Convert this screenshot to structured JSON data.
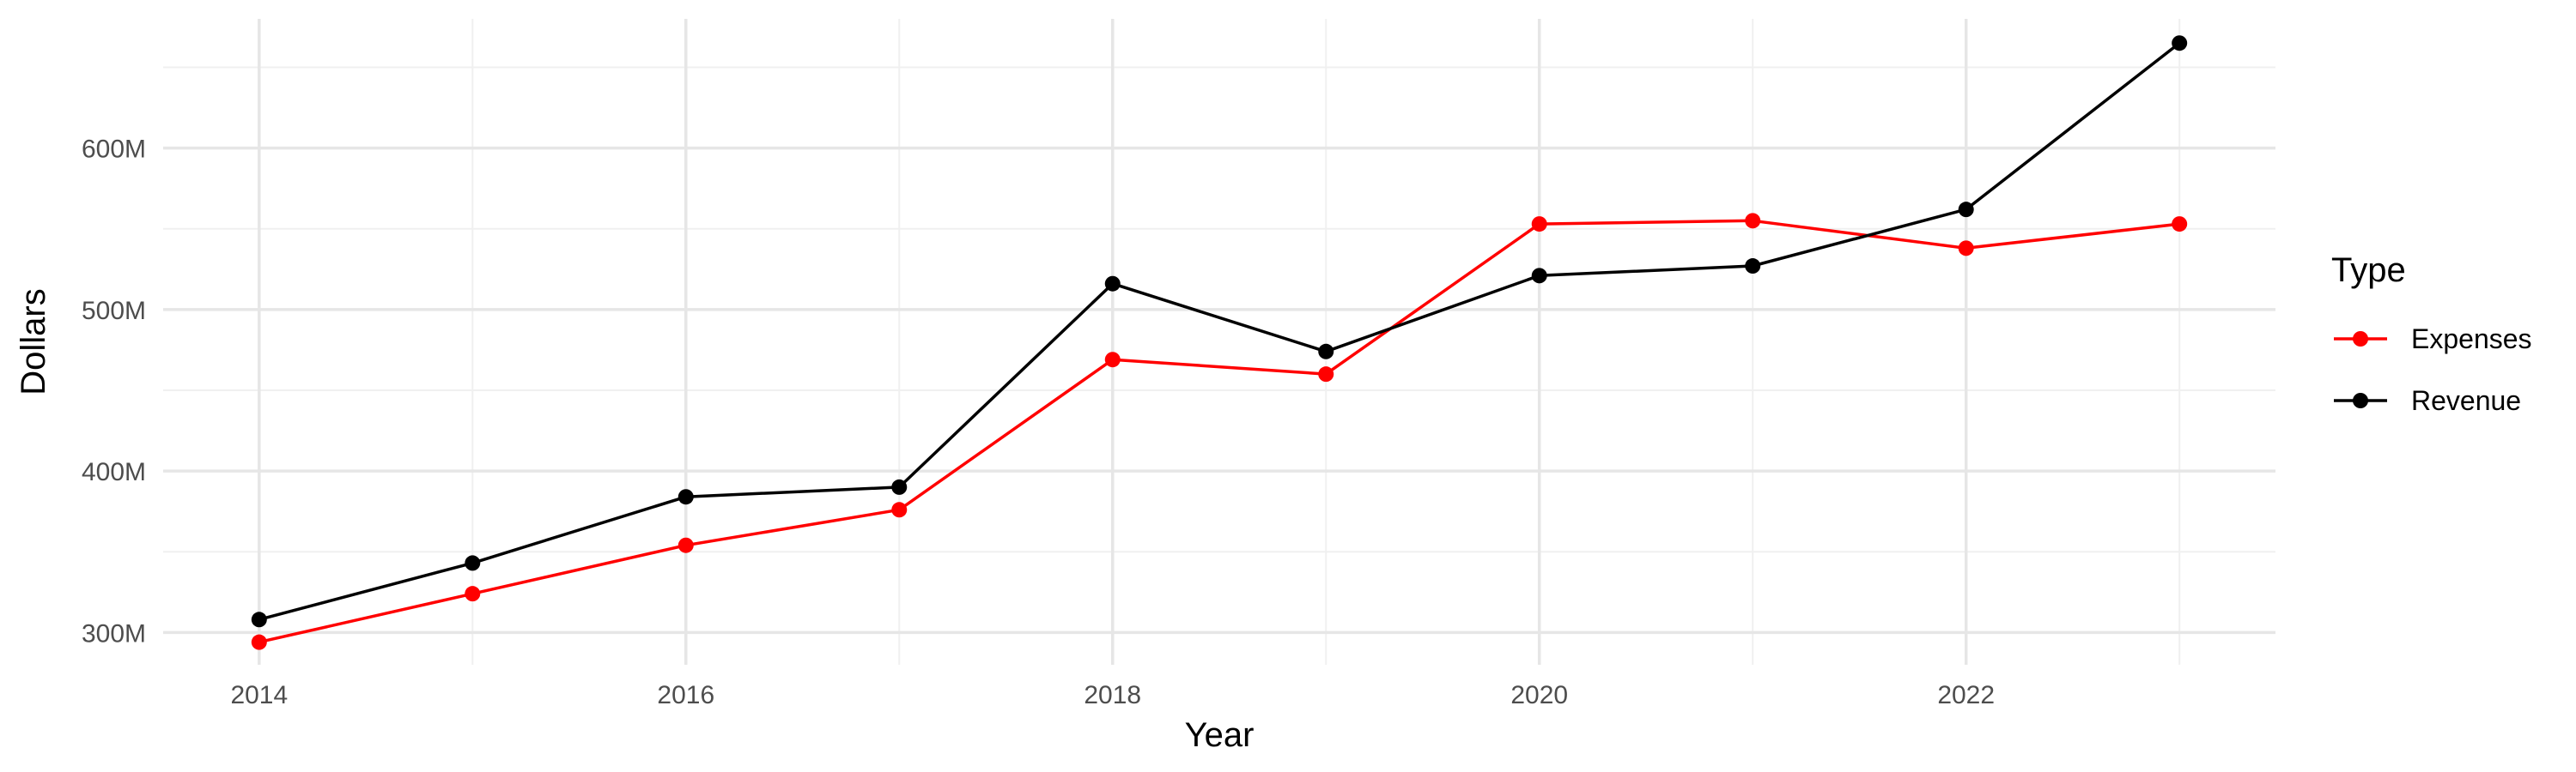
{
  "chart_data": {
    "type": "line",
    "title": "",
    "xlabel": "Year",
    "ylabel": "Dollars",
    "x": [
      2014,
      2015,
      2016,
      2017,
      2018,
      2019,
      2020,
      2021,
      2022,
      2023
    ],
    "x_ticks": [
      2014,
      2016,
      2018,
      2020,
      2022
    ],
    "x_tick_labels": [
      "2014",
      "2016",
      "2018",
      "2020",
      "2022"
    ],
    "y_ticks": [
      300,
      400,
      500,
      600
    ],
    "y_tick_labels": [
      "300M",
      "400M",
      "500M",
      "600M"
    ],
    "y_unit": "millions of dollars",
    "xlim": [
      2013.55,
      2023.45
    ],
    "ylim": [
      280,
      680
    ],
    "grid": true,
    "legend": {
      "title": "Type",
      "placement": "right"
    },
    "series": [
      {
        "name": "Expenses",
        "color": "#ff0000",
        "values": [
          294,
          324,
          354,
          376,
          469,
          460,
          553,
          555,
          538,
          553
        ]
      },
      {
        "name": "Revenue",
        "color": "#000000",
        "values": [
          308,
          343,
          384,
          390,
          516,
          474,
          521,
          527,
          562,
          665
        ]
      }
    ]
  }
}
